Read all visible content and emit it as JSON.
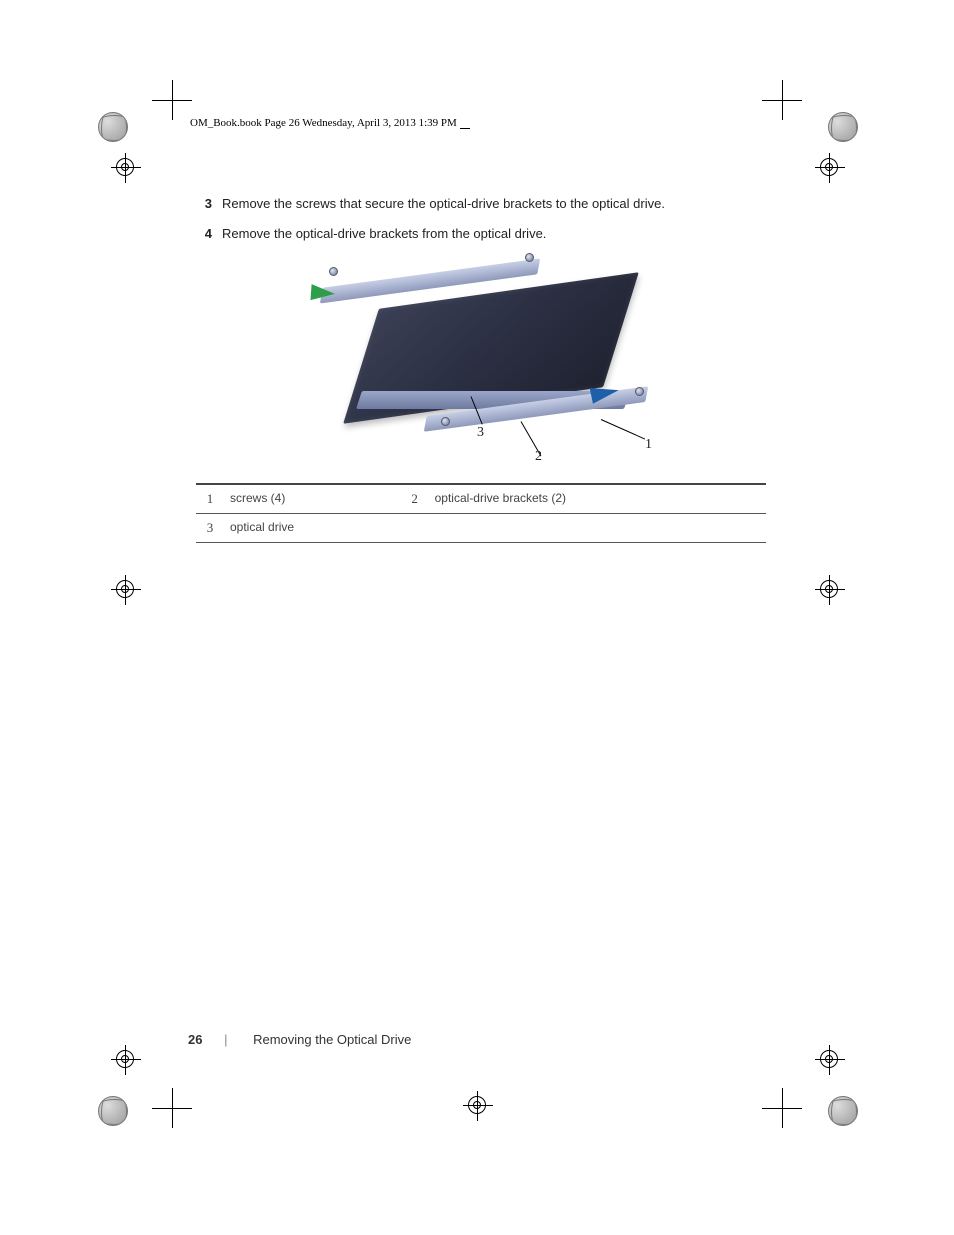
{
  "header": {
    "running_head": "OM_Book.book  Page 26  Wednesday, April 3, 2013  1:39 PM"
  },
  "steps": [
    {
      "num": "3",
      "text": "Remove the screws that secure the optical-drive brackets to the optical drive."
    },
    {
      "num": "4",
      "text": "Remove the optical-drive brackets from the optical drive."
    }
  ],
  "figure": {
    "type": "diagram",
    "callouts": {
      "1": {
        "label": "1"
      },
      "2": {
        "label": "2"
      },
      "3": {
        "label": "3"
      }
    },
    "colors": {
      "drive_body": "#2b2f42",
      "drive_front": "#8892b6",
      "bracket": "#aeb7d4",
      "arrow_green": "#2e9e4a",
      "arrow_blue": "#1d5fa8",
      "screw": "#6b7390"
    }
  },
  "legend": {
    "rows": [
      {
        "idx": "1",
        "desc": "screws (4)",
        "idx2": "2",
        "desc2": "optical-drive brackets (2)"
      },
      {
        "idx": "3",
        "desc": "optical drive",
        "idx2": "",
        "desc2": ""
      }
    ]
  },
  "footer": {
    "page_number": "26",
    "separator": "|",
    "section_title": "Removing the Optical Drive"
  }
}
